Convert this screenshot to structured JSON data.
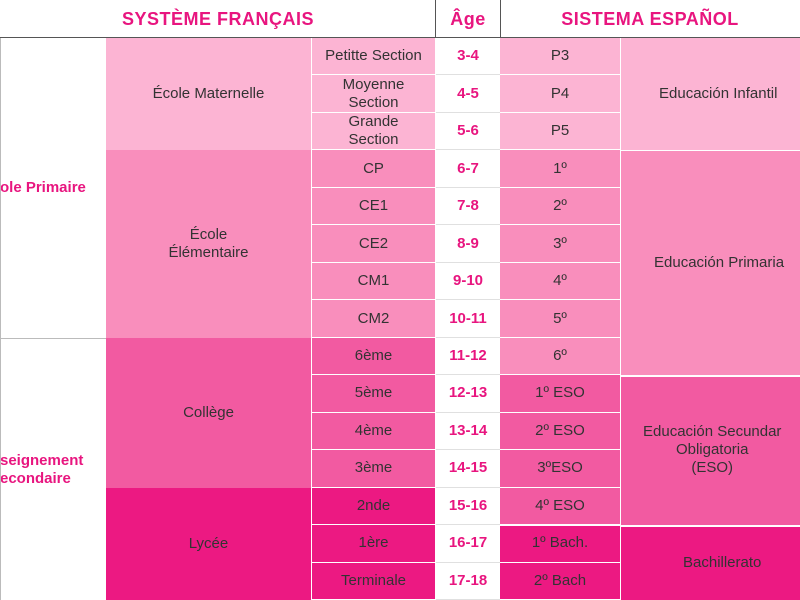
{
  "header": {
    "french": "SYSTÈME FRANÇAIS",
    "age": "Âge",
    "spanish": "SISTEMA ESPAÑOL"
  },
  "french_stages": {
    "primaire": "ole Primaire",
    "secondaire": "seignement\necondaire"
  },
  "french_schools": {
    "maternelle": "École Maternelle",
    "elementaire": "École\nÉlémentaire",
    "college": "Collège",
    "lycee": "Lycée"
  },
  "rows": [
    {
      "fr_level": "Petitte Section",
      "age": "3-4",
      "es_level": "P3"
    },
    {
      "fr_level": "Moyenne\nSection",
      "age": "4-5",
      "es_level": "P4"
    },
    {
      "fr_level": "Grande\nSection",
      "age": "5-6",
      "es_level": "P5"
    },
    {
      "fr_level": "CP",
      "age": "6-7",
      "es_level": "1º"
    },
    {
      "fr_level": "CE1",
      "age": "7-8",
      "es_level": "2º"
    },
    {
      "fr_level": "CE2",
      "age": "8-9",
      "es_level": "3º"
    },
    {
      "fr_level": "CM1",
      "age": "9-10",
      "es_level": "4º"
    },
    {
      "fr_level": "CM2",
      "age": "10-11",
      "es_level": "5º"
    },
    {
      "fr_level": "6ème",
      "age": "11-12",
      "es_level": "6º"
    },
    {
      "fr_level": "5ème",
      "age": "12-13",
      "es_level": "1º ESO"
    },
    {
      "fr_level": "4ème",
      "age": "13-14",
      "es_level": "2º ESO"
    },
    {
      "fr_level": "3ème",
      "age": "14-15",
      "es_level": "3ºESO"
    },
    {
      "fr_level": "2nde",
      "age": "15-16",
      "es_level": "4º ESO"
    },
    {
      "fr_level": "1ère",
      "age": "16-17",
      "es_level": "1º Bach."
    },
    {
      "fr_level": "Terminale",
      "age": "17-18",
      "es_level": "2º Bach"
    }
  ],
  "spanish_stages": {
    "infantil": "Educación Infantil",
    "primaria": "Educación Primaria",
    "secundaria": "Educación Secundar\nObligatoria\n(ESO)",
    "bachillerato": "Bachillerato"
  },
  "colors": {
    "accent_text": "#e8157f",
    "maternelle": "#fcb4d3",
    "primaire": "#f98ebc",
    "college": "#f25aa1",
    "lycee": "#ec1982"
  }
}
